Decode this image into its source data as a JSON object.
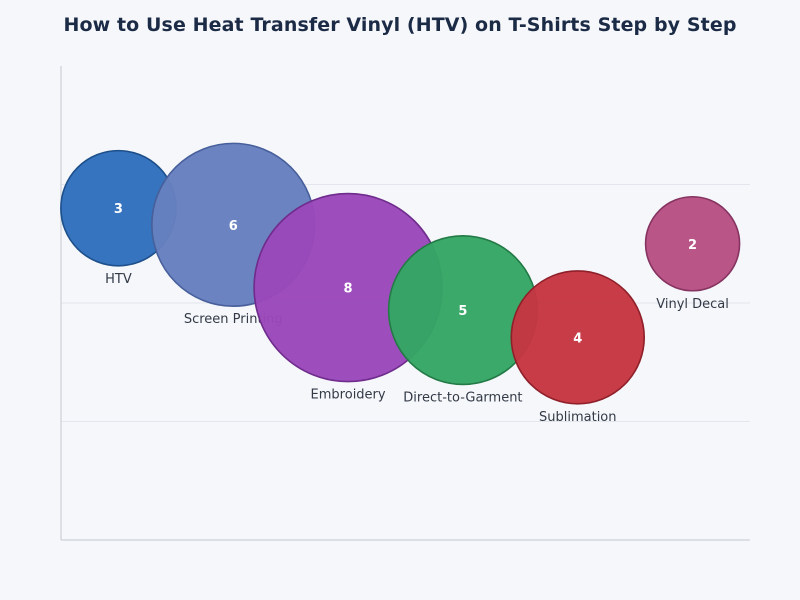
{
  "chart_data": {
    "type": "scatter",
    "title": "How to Use Heat Transfer Vinyl (HTV) on T-Shirts Step by Step",
    "xlabel": "",
    "ylabel": "",
    "xlim": [
      0.5,
      6.5
    ],
    "ylim": [
      0,
      4
    ],
    "grid": true,
    "legend": "none",
    "points": [
      {
        "label": "HTV",
        "x": 1,
        "y": 2.8,
        "value": 3,
        "color": "#2f6fbd",
        "stroke": "#1d4f8a"
      },
      {
        "label": "Screen Printing",
        "x": 2,
        "y": 2.66,
        "value": 6,
        "color": "#6680bf",
        "stroke": "#475f9a"
      },
      {
        "label": "Embroidery",
        "x": 3,
        "y": 2.13,
        "value": 8,
        "color": "#9a48ba",
        "stroke": "#6f2c8c"
      },
      {
        "label": "Direct-to-Garment",
        "x": 4,
        "y": 1.94,
        "value": 5,
        "color": "#35a664",
        "stroke": "#237a46"
      },
      {
        "label": "Sublimation",
        "x": 5,
        "y": 1.71,
        "value": 4,
        "color": "#c53641",
        "stroke": "#8f202a"
      },
      {
        "label": "Vinyl Decal",
        "x": 6,
        "y": 2.5,
        "value": 2,
        "color": "#b85083",
        "stroke": "#853360"
      }
    ]
  }
}
